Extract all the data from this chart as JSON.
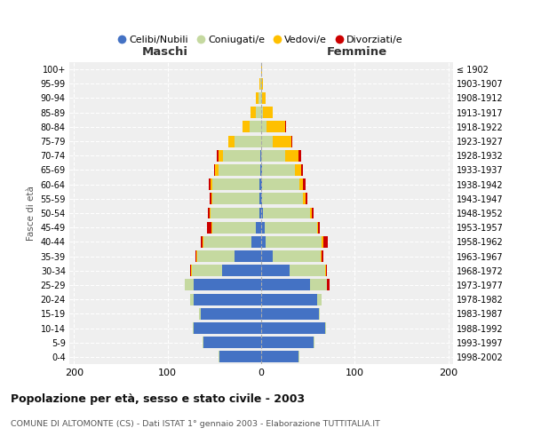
{
  "age_groups": [
    "0-4",
    "5-9",
    "10-14",
    "15-19",
    "20-24",
    "25-29",
    "30-34",
    "35-39",
    "40-44",
    "45-49",
    "50-54",
    "55-59",
    "60-64",
    "65-69",
    "70-74",
    "75-79",
    "80-84",
    "85-89",
    "90-94",
    "95-99",
    "100+"
  ],
  "birth_years": [
    "1998-2002",
    "1993-1997",
    "1988-1992",
    "1983-1987",
    "1978-1982",
    "1973-1977",
    "1968-1972",
    "1963-1967",
    "1958-1962",
    "1953-1957",
    "1948-1952",
    "1943-1947",
    "1938-1942",
    "1933-1937",
    "1928-1932",
    "1923-1927",
    "1918-1922",
    "1913-1917",
    "1908-1912",
    "1903-1907",
    "≤ 1902"
  ],
  "maschi": {
    "celibi": [
      45,
      62,
      72,
      65,
      72,
      72,
      42,
      28,
      10,
      6,
      2,
      2,
      2,
      1,
      1,
      0,
      0,
      0,
      0,
      0,
      0
    ],
    "coniugati": [
      1,
      1,
      1,
      1,
      4,
      10,
      32,
      40,
      52,
      46,
      52,
      50,
      50,
      45,
      40,
      28,
      12,
      6,
      3,
      1,
      0
    ],
    "vedovi": [
      0,
      0,
      0,
      0,
      0,
      0,
      1,
      1,
      1,
      1,
      1,
      1,
      2,
      3,
      5,
      7,
      8,
      5,
      3,
      1,
      0
    ],
    "divorziati": [
      0,
      0,
      0,
      0,
      0,
      0,
      1,
      1,
      2,
      5,
      2,
      2,
      2,
      1,
      1,
      0,
      0,
      0,
      0,
      0,
      0
    ]
  },
  "femmine": {
    "nubili": [
      40,
      56,
      68,
      62,
      60,
      52,
      30,
      12,
      5,
      4,
      2,
      1,
      1,
      1,
      0,
      0,
      0,
      0,
      0,
      0,
      0
    ],
    "coniugate": [
      1,
      1,
      1,
      1,
      5,
      18,
      38,
      52,
      60,
      56,
      50,
      44,
      40,
      35,
      26,
      12,
      6,
      2,
      1,
      0,
      0
    ],
    "vedove": [
      0,
      0,
      0,
      0,
      0,
      0,
      1,
      1,
      1,
      1,
      2,
      2,
      4,
      7,
      14,
      20,
      20,
      10,
      4,
      2,
      1
    ],
    "divorziate": [
      0,
      0,
      0,
      0,
      0,
      3,
      1,
      1,
      5,
      2,
      2,
      2,
      2,
      2,
      3,
      1,
      1,
      0,
      0,
      0,
      0
    ]
  },
  "color_celibi": "#4472c4",
  "color_coniugati": "#c5d9a0",
  "color_vedovi": "#ffc000",
  "color_divorziati": "#cc0000",
  "xlim": 205,
  "title": "Popolazione per età, sesso e stato civile - 2003",
  "subtitle": "COMUNE DI ALTOMONTE (CS) - Dati ISTAT 1° gennaio 2003 - Elaborazione TUTTITALIA.IT",
  "ylabel_left": "Fasce di età",
  "xlabel_maschi": "Maschi",
  "xlabel_femmine": "Femmine",
  "legend_celibi": "Celibi/Nubili",
  "legend_coniugati": "Coniugati/e",
  "legend_vedovi": "Vedovi/e",
  "legend_divorziati": "Divorziati/e",
  "bg_color": "#ffffff",
  "plot_bg_color": "#efefef"
}
